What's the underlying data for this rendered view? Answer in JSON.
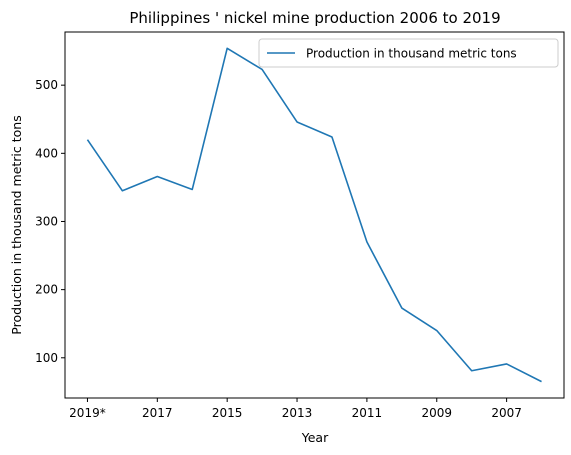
{
  "chart_data": {
    "type": "line",
    "title": "Philippines ' nickel mine production 2006 to 2019",
    "xlabel": "Year",
    "ylabel": "Production in thousand metric tons",
    "categories": [
      "2019*",
      "2018",
      "2017",
      "2016",
      "2015",
      "2014",
      "2013",
      "2012",
      "2011",
      "2010",
      "2009",
      "2008",
      "2007",
      "2006"
    ],
    "x_tick_labels": [
      "2019*",
      "2017",
      "2015",
      "2013",
      "2011",
      "2009",
      "2007"
    ],
    "series": [
      {
        "name": "Production in thousand metric tons",
        "color": "#1f77b4",
        "values": [
          420,
          345,
          366,
          347,
          554,
          523,
          446,
          424,
          270,
          173,
          140,
          81,
          91,
          65
        ]
      }
    ],
    "ylim": [
      41,
      578
    ],
    "y_ticks": [
      100,
      200,
      300,
      400,
      500
    ],
    "legend_position": "upper-right",
    "grid": false
  }
}
